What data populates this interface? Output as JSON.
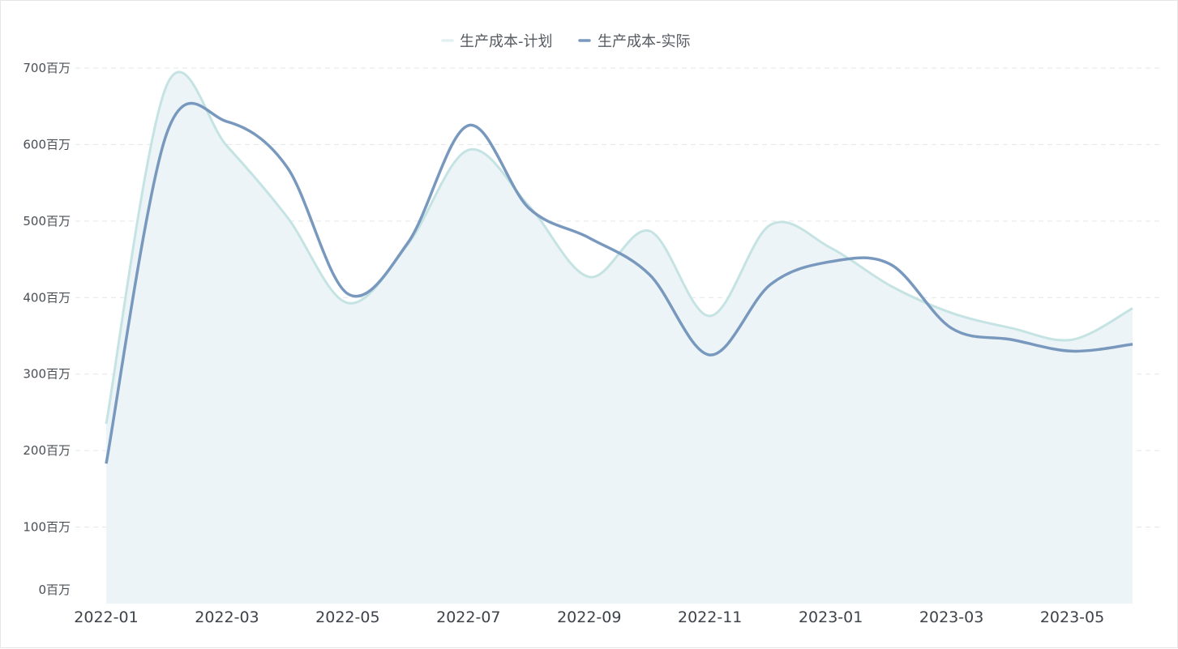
{
  "chart_data": {
    "type": "area",
    "x": [
      "2022-01",
      "2022-02",
      "2022-03",
      "2022-04",
      "2022-05",
      "2022-06",
      "2022-07",
      "2022-08",
      "2022-09",
      "2022-10",
      "2022-11",
      "2022-12",
      "2023-01",
      "2023-02",
      "2023-03",
      "2023-04",
      "2023-05",
      "2023-06"
    ],
    "x_tick_labels": [
      "2022-01",
      "2022-03",
      "2022-05",
      "2022-07",
      "2022-09",
      "2022-11",
      "2023-01",
      "2023-03",
      "2023-05"
    ],
    "y_tick_labels": [
      "0百万",
      "100百万",
      "200百万",
      "300百万",
      "400百万",
      "500百万",
      "600百万",
      "700百万"
    ],
    "ylim": [
      0,
      700
    ],
    "grid": "horizontal-dashed",
    "legend_position": "top-center",
    "series": [
      {
        "name": "生产成本-计划",
        "style": "area",
        "color": "#c5e3e3",
        "fill": "#ecf4f8",
        "values": [
          235,
          677,
          598,
          505,
          393,
          470,
          593,
          520,
          427,
          487,
          376,
          495,
          465,
          415,
          380,
          360,
          345,
          386
        ]
      },
      {
        "name": "生产成本-实际",
        "style": "line",
        "color": "#7899bd",
        "values": [
          183,
          614,
          630,
          570,
          405,
          472,
          625,
          517,
          478,
          430,
          325,
          417,
          447,
          443,
          360,
          345,
          330,
          339
        ]
      }
    ],
    "title": "",
    "xlabel": "",
    "ylabel": ""
  }
}
